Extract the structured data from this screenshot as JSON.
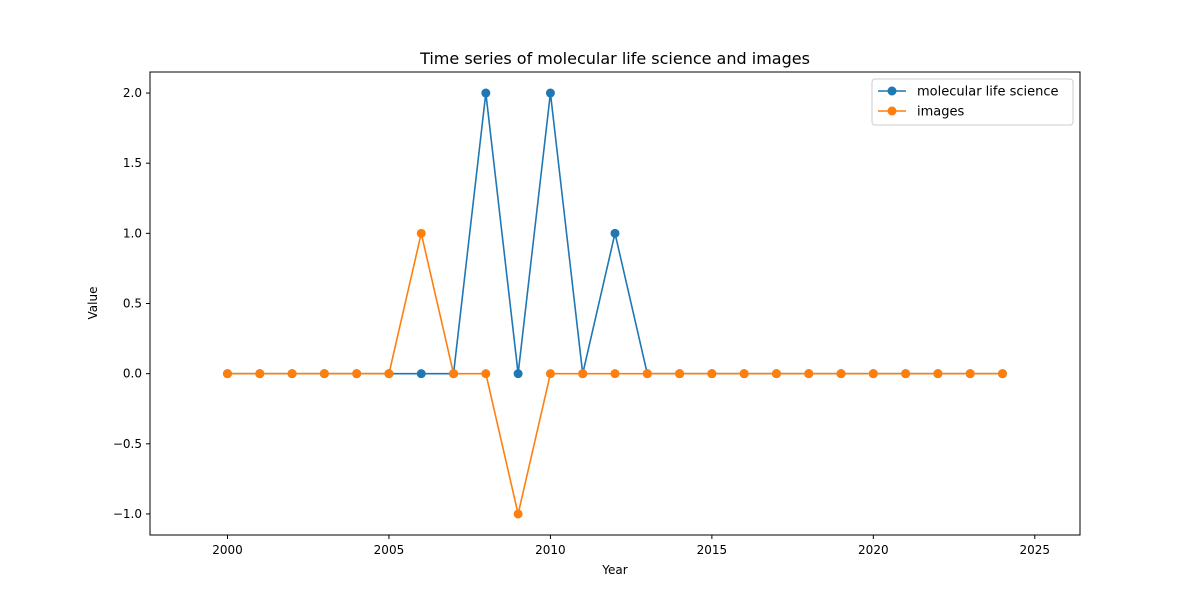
{
  "chart_data": {
    "type": "line",
    "title": "Time series of molecular life science and images",
    "xlabel": "Year",
    "ylabel": "Value",
    "x": [
      2000,
      2001,
      2002,
      2003,
      2004,
      2005,
      2006,
      2007,
      2008,
      2009,
      2010,
      2011,
      2012,
      2013,
      2014,
      2015,
      2016,
      2017,
      2018,
      2019,
      2020,
      2021,
      2022,
      2023,
      2024
    ],
    "xlim": [
      1997.6,
      2026.4
    ],
    "ylim": [
      -1.15,
      2.15
    ],
    "xticks": [
      2000,
      2005,
      2010,
      2015,
      2020,
      2025
    ],
    "yticks": [
      -1.0,
      -0.5,
      0.0,
      0.5,
      1.0,
      1.5,
      2.0
    ],
    "xtick_labels": [
      "2000",
      "2005",
      "2010",
      "2015",
      "2020",
      "2025"
    ],
    "ytick_labels": [
      "−1.0",
      "−0.5",
      "0.0",
      "0.5",
      "1.0",
      "1.5",
      "2.0"
    ],
    "grid": false,
    "legend_position": "top-right",
    "series": [
      {
        "name": "molecular life science",
        "color": "#1f77b4",
        "values": [
          0,
          0,
          0,
          0,
          0,
          0,
          0,
          0,
          2,
          0,
          2,
          0,
          1,
          0,
          0,
          0,
          0,
          0,
          0,
          0,
          0,
          0,
          0,
          0,
          0
        ]
      },
      {
        "name": "images",
        "color": "#ff7f0e",
        "values": [
          0,
          0,
          0,
          0,
          0,
          0,
          1,
          0,
          0,
          -1,
          0,
          0,
          0,
          0,
          0,
          0,
          0,
          0,
          0,
          0,
          0,
          0,
          0,
          0,
          0
        ]
      }
    ]
  }
}
